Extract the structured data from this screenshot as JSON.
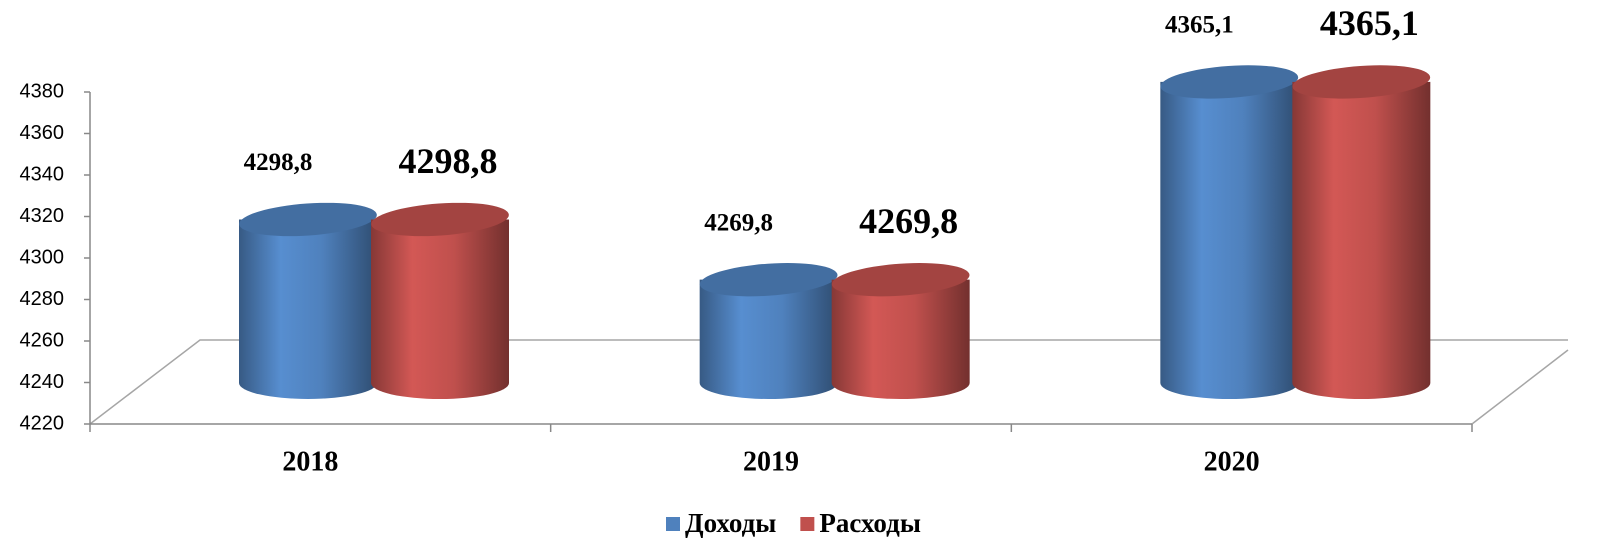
{
  "chart_data": {
    "type": "cylinder",
    "categories": [
      "2018",
      "2019",
      "2020"
    ],
    "series": [
      {
        "name": "Доходы",
        "color": "#4f81bd",
        "values": [
          4298.8,
          4269.8,
          4365.1
        ],
        "value_labels": [
          "4298,8",
          "4269,8",
          "4365,1"
        ]
      },
      {
        "name": "Расходы",
        "color": "#c0504d",
        "values": [
          4298.8,
          4269.8,
          4365.1
        ],
        "value_labels": [
          "4298,8",
          "4269,8",
          "4365,1"
        ]
      }
    ],
    "ylim": [
      4220,
      4380
    ],
    "yticks": [
      4220,
      4240,
      4260,
      4280,
      4300,
      4320,
      4340,
      4360,
      4380
    ],
    "legend": "bottom"
  }
}
